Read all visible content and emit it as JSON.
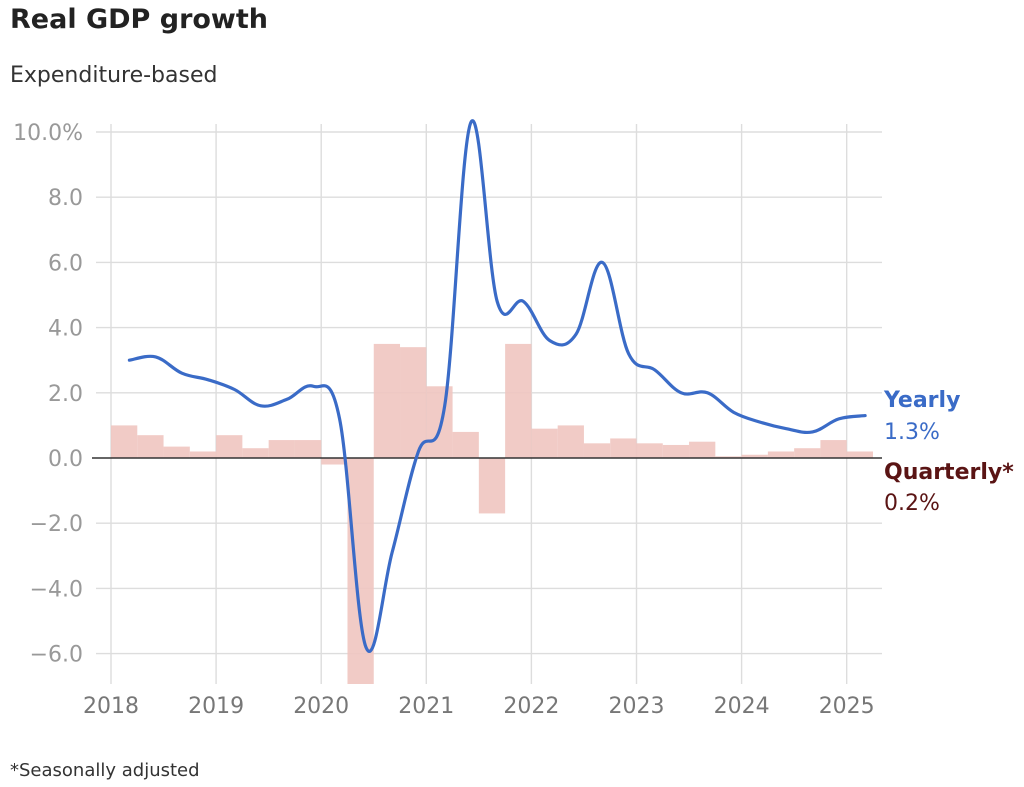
{
  "title": "Real GDP growth",
  "subtitle": "Expenditure-based",
  "footnote": "*Seasonally adjusted",
  "colors": {
    "yearly": "#3a6bc7",
    "quarterly_bar": "#f0c5c0",
    "quarterly_label": "#5a1414",
    "grid": "#dddddd",
    "zero": "#333333"
  },
  "chart_data": {
    "type": "line",
    "y_tick_labels": [
      "10.0%",
      "8.0",
      "6.0",
      "4.0",
      "2.0",
      "0.0",
      "−2.0",
      "−4.0",
      "−6.0"
    ],
    "y_ticks": [
      10,
      8,
      6,
      4,
      2,
      0,
      -2,
      -4,
      -6
    ],
    "x_tick_labels": [
      "2018",
      "2019",
      "2020",
      "2021",
      "2022",
      "2023",
      "2024",
      "2025"
    ],
    "x_ticks": [
      2018,
      2019,
      2020,
      2021,
      2022,
      2023,
      2024,
      2025
    ],
    "ylim": [
      -6.7,
      10.4
    ],
    "grid": true,
    "series": [
      {
        "name": "Yearly",
        "type": "line",
        "end_label": "1.3%",
        "x": [
          "2018 Q1",
          "2018 Q2",
          "2018 Q3",
          "2018 Q4",
          "2019 Q1",
          "2019 Q2",
          "2019 Q3",
          "2019 Q4",
          "2020 Q1",
          "2020 Q2",
          "2020 Q3",
          "2020 Q4",
          "2021 Q1",
          "2021 Q2",
          "2021 Q3",
          "2021 Q4",
          "2022 Q1",
          "2022 Q2",
          "2022 Q3",
          "2022 Q4",
          "2023 Q1",
          "2023 Q2",
          "2023 Q3",
          "2023 Q4",
          "2024 Q1",
          "2024 Q2",
          "2024 Q3",
          "2024 Q4",
          "2025 Q1"
        ],
        "values": [
          3.0,
          3.1,
          2.6,
          2.4,
          2.1,
          1.6,
          1.8,
          2.2,
          1.2,
          -5.8,
          -2.9,
          0.2,
          1.6,
          10.3,
          4.8,
          4.8,
          3.6,
          3.8,
          6.0,
          3.2,
          2.7,
          2.0,
          2.0,
          1.4,
          1.1,
          0.9,
          0.8,
          1.2,
          1.3
        ]
      },
      {
        "name": "Quarterly*",
        "type": "bar",
        "end_label": "0.2%",
        "x": [
          "2018 Q1",
          "2018 Q2",
          "2018 Q3",
          "2018 Q4",
          "2019 Q1",
          "2019 Q2",
          "2019 Q3",
          "2019 Q4",
          "2020 Q1",
          "2020 Q2",
          "2020 Q3",
          "2020 Q4",
          "2021 Q1",
          "2021 Q2",
          "2021 Q3",
          "2021 Q4",
          "2022 Q1",
          "2022 Q2",
          "2022 Q3",
          "2022 Q4",
          "2023 Q1",
          "2023 Q2",
          "2023 Q3",
          "2023 Q4",
          "2024 Q1",
          "2024 Q2",
          "2024 Q3",
          "2024 Q4",
          "2025 Q1"
        ],
        "values": [
          1.0,
          0.7,
          0.35,
          0.2,
          0.7,
          0.3,
          0.55,
          0.55,
          -0.2,
          -7.5,
          3.5,
          3.4,
          2.2,
          0.8,
          -1.7,
          3.5,
          0.9,
          1.0,
          0.45,
          0.6,
          0.45,
          0.4,
          0.5,
          0.05,
          0.1,
          0.2,
          0.3,
          0.55,
          0.2
        ]
      }
    ]
  }
}
